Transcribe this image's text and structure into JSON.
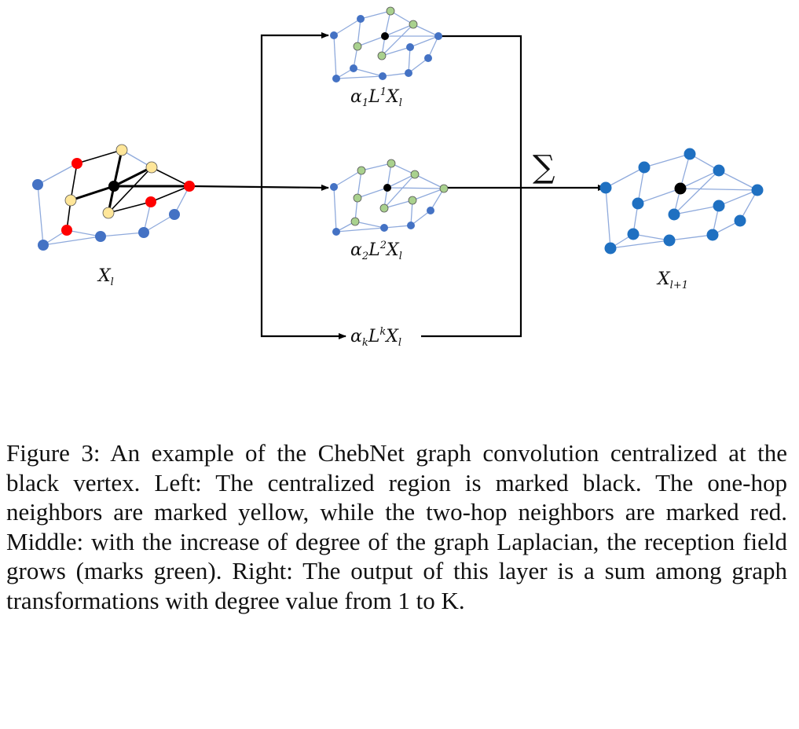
{
  "diagram": {
    "labels": {
      "input": {
        "base": "X",
        "sub": "l"
      },
      "branch1": {
        "alpha": "α",
        "alpha_sub": "1",
        "op": "L",
        "sup": "1",
        "x": "X",
        "x_sub": "l"
      },
      "branch2": {
        "alpha": "α",
        "alpha_sub": "2",
        "op": "L",
        "sup": "2",
        "x": "X",
        "x_sub": "l"
      },
      "branchk": {
        "alpha": "α",
        "alpha_sub": "k",
        "op": "L",
        "sup": "k",
        "x": "X",
        "x_sub": "l"
      },
      "sum_symbol": "∑",
      "output": {
        "base": "X",
        "sub": "l+1"
      }
    },
    "colors": {
      "default_vertex": "#4472C4",
      "output_vertex": "#1F70C1",
      "center_vertex": "#000000",
      "one_hop_vertex": "#FFE699",
      "two_hop_vertex": "#FF0000",
      "receptive_field_vertex": "#A9D18E",
      "graph_edge": "#8FAADC",
      "highlight_edge": "#000000"
    }
  },
  "caption": "Figure 3: An example of the ChebNet graph convolution centralized at the black vertex. Left: The centralized region is marked black. The one-hop neighbors are marked yellow, while the two-hop neighbors are marked red. Middle: with the increase of degree of the graph Laplacian, the reception field grows (marks green). Right: The output of this layer is a sum among graph transformations with degree value from 1 to K."
}
